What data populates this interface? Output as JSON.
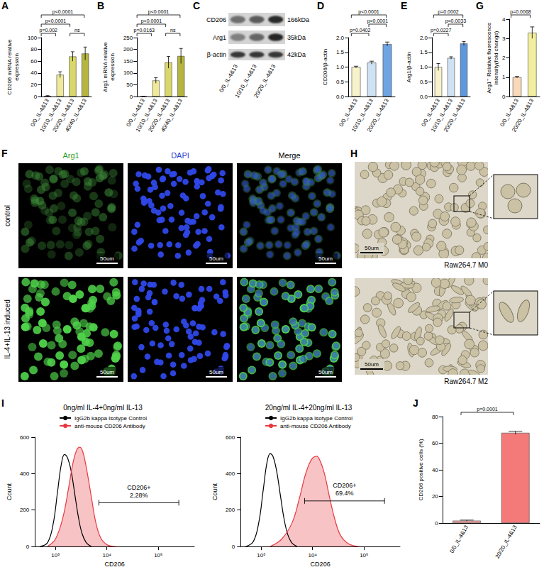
{
  "chart_data": [
    {
      "panel": "A",
      "type": "bar",
      "ylabel": "CD206 mRNA relative expression",
      "categories": [
        "0/0_IL-4&13",
        "10/10_IL-4&13",
        "20/20_IL-4&13",
        "40/40_IL-4&13"
      ],
      "values": [
        1,
        37,
        68,
        73
      ],
      "errors": [
        0.5,
        5,
        8,
        11
      ],
      "colors": [
        "#fbf7d5",
        "#efe99a",
        "#d9d76a",
        "#b5b53f"
      ],
      "ylim": [
        0,
        100
      ],
      "yticks": [
        0,
        20,
        40,
        60,
        80,
        100
      ],
      "comparisons": [
        {
          "groups": [
            0,
            1
          ],
          "label": "p=0.002"
        },
        {
          "groups": [
            2,
            3
          ],
          "label": "ns"
        },
        {
          "groups": [
            0,
            2
          ],
          "label": "p<0.0001"
        },
        {
          "groups": [
            0,
            3
          ],
          "label": "p<0.0001"
        }
      ]
    },
    {
      "panel": "B",
      "type": "bar",
      "ylabel": "Arg1 mRNA relative expression",
      "categories": [
        "0/0_IL-4&13",
        "10/10_IL-4&13",
        "20/20_IL-4&13",
        "40/40_IL-4&13"
      ],
      "values": [
        1,
        68,
        145,
        172
      ],
      "errors": [
        0.5,
        12,
        25,
        32
      ],
      "colors": [
        "#fbf7d5",
        "#efe99a",
        "#d9d76a",
        "#b5b53f"
      ],
      "ylim": [
        0,
        250
      ],
      "yticks": [
        0,
        50,
        100,
        150,
        200,
        250
      ],
      "comparisons": [
        {
          "groups": [
            0,
            1
          ],
          "label": "p=0.0163"
        },
        {
          "groups": [
            2,
            3
          ],
          "label": "ns"
        },
        {
          "groups": [
            0,
            2
          ],
          "label": "p<0.0001"
        },
        {
          "groups": [
            0,
            3
          ],
          "label": "p<0.0001"
        }
      ]
    },
    {
      "panel": "D",
      "type": "bar",
      "ylabel": "CD206/β-actin",
      "categories": [
        "0/0_IL-4&13",
        "10/10_IL-4&13",
        "20/20_IL-4&13"
      ],
      "values": [
        1.0,
        1.15,
        1.78
      ],
      "errors": [
        0.03,
        0.05,
        0.07
      ],
      "colors": [
        "#f7f2c9",
        "#cfe2f4",
        "#6ea4e2"
      ],
      "ylim": [
        0,
        2
      ],
      "yticks": [
        {
          "value": 0,
          "label": "0.0"
        },
        {
          "value": 0.5,
          "label": "0.5"
        },
        {
          "value": 1,
          "label": "1.0"
        },
        {
          "value": 1.5,
          "label": "1.5"
        },
        {
          "value": 2,
          "label": "2.0"
        }
      ],
      "comparisons": [
        {
          "groups": [
            0,
            1
          ],
          "label": "p=0.0402"
        },
        {
          "groups": [
            1,
            2
          ],
          "label": "p<0.0001"
        },
        {
          "groups": [
            0,
            2
          ],
          "label": "p<0.0001"
        }
      ]
    },
    {
      "panel": "E",
      "type": "bar",
      "ylabel": "Arg1/β-actin",
      "categories": [
        "0/0_IL-4&13",
        "10/10_IL-4&13",
        "20/20_IL-4&13"
      ],
      "values": [
        1.0,
        1.31,
        1.8
      ],
      "errors": [
        0.12,
        0.04,
        0.07
      ],
      "colors": [
        "#f7f2c9",
        "#cfe2f4",
        "#5d98dd"
      ],
      "ylim": [
        0,
        2
      ],
      "yticks": [
        {
          "value": 0,
          "label": "0.0"
        },
        {
          "value": 0.5,
          "label": "0.5"
        },
        {
          "value": 1,
          "label": "1.0"
        },
        {
          "value": 1.5,
          "label": "1.5"
        },
        {
          "value": 2,
          "label": "2.0"
        }
      ],
      "comparisons": [
        {
          "groups": [
            0,
            1
          ],
          "label": "p=0.0227"
        },
        {
          "groups": [
            1,
            2
          ],
          "label": "p=0.0033"
        },
        {
          "groups": [
            0,
            2
          ],
          "label": "p=0.0002"
        }
      ]
    },
    {
      "panel": "G",
      "type": "bar",
      "ylabel": "Arg1⁺ Relative fluorescence intensity(fold change)",
      "categories": [
        "0/0_IL-4&13",
        "20/20_IL-4&13"
      ],
      "values": [
        1.0,
        3.3
      ],
      "errors": [
        0.04,
        0.3
      ],
      "colors": [
        "#fad9b8",
        "#f1ee9f"
      ],
      "ylim": [
        0,
        4
      ],
      "yticks": [
        0,
        1,
        2,
        3,
        4
      ],
      "comparisons": [
        {
          "groups": [
            0,
            1
          ],
          "label": "p=0.0068"
        }
      ]
    },
    {
      "panel": "I",
      "type": "line",
      "title": "0ng/ml IL-4+0ng/ml IL-13",
      "xlabel": "CD206",
      "ylabel": "Count",
      "log": "x",
      "xlim": [
        400,
        500000
      ],
      "xticks": [
        {
          "value": 1000,
          "label": "10³"
        },
        {
          "value": 10000,
          "label": "10⁴"
        },
        {
          "value": 100000,
          "label": "10⁵"
        }
      ],
      "ylim": [
        0,
        600
      ],
      "yticks": [
        0,
        200,
        400,
        600
      ],
      "legend": "top",
      "series": [
        {
          "name": "IgG2b kappa Isotype Control",
          "type": "line",
          "color": "#000000",
          "x": [
            500,
            700,
            900,
            1100,
            1300,
            1500,
            1700,
            2000,
            2400,
            2800,
            3300,
            4000,
            5000
          ],
          "values": [
            0,
            20,
            120,
            300,
            450,
            505,
            490,
            420,
            280,
            160,
            70,
            20,
            0
          ]
        },
        {
          "name": "anti-mouse CD206 Antibody",
          "type": "area",
          "color": "#e8393f",
          "x": [
            700,
            1000,
            1400,
            1800,
            2200,
            2600,
            3000,
            3400,
            4000,
            5000,
            6000,
            7500,
            10000,
            15000
          ],
          "values": [
            0,
            40,
            160,
            320,
            460,
            530,
            545,
            520,
            430,
            270,
            140,
            50,
            10,
            0
          ]
        }
      ],
      "gate": {
        "x": [
          7000,
          250000
        ],
        "y": 240,
        "labels": [
          "CD206+",
          "2.28%"
        ]
      }
    },
    {
      "type": "line",
      "title": "20ng/ml IL-4+20ng/ml IL-13",
      "xlabel": "CD206",
      "ylabel": "Count",
      "log": "x",
      "xlim": [
        400,
        500000
      ],
      "xticks": [
        {
          "value": 1000,
          "label": "10³"
        },
        {
          "value": 10000,
          "label": "10⁴"
        },
        {
          "value": 100000,
          "label": "10⁵"
        }
      ],
      "ylim": [
        0,
        600
      ],
      "yticks": [
        0,
        200,
        400,
        600
      ],
      "legend": "top",
      "series": [
        {
          "name": "IgG2b kappa Isotype Control",
          "type": "line",
          "color": "#000000",
          "x": [
            500,
            700,
            900,
            1100,
            1300,
            1500,
            1700,
            2000,
            2400,
            2800,
            3300,
            4000,
            5000
          ],
          "values": [
            0,
            25,
            130,
            310,
            460,
            510,
            495,
            415,
            270,
            150,
            65,
            18,
            0
          ]
        },
        {
          "name": "anti-mouse CD206 Antibody",
          "type": "area",
          "color": "#e8393f",
          "x": [
            1500,
            2500,
            4000,
            5500,
            7000,
            8500,
            10000,
            12000,
            14000,
            17000,
            21000,
            27000,
            35000,
            50000,
            80000
          ],
          "values": [
            0,
            40,
            130,
            260,
            380,
            450,
            485,
            495,
            470,
            400,
            280,
            150,
            60,
            15,
            0
          ]
        }
      ],
      "gate": {
        "x": [
          7000,
          250000
        ],
        "y": 250,
        "labels": [
          "CD206+",
          "69.4%"
        ]
      }
    },
    {
      "panel": "J",
      "type": "bar",
      "ylabel": "CD206 positive cells (%)",
      "categories": [
        "0/0_IL-4&13",
        "20/20_IL-4&13"
      ],
      "values": [
        1.8,
        67.8
      ],
      "errors": [
        0.4,
        1.2
      ],
      "colors": [
        "#f3a4a4",
        "#f47a7a"
      ],
      "ylim": [
        0,
        80
      ],
      "yticks": [
        0,
        20,
        40,
        60,
        80
      ],
      "comparisons": [
        {
          "groups": [
            0,
            1
          ],
          "label": "p=0.0001"
        }
      ]
    }
  ],
  "blot": {
    "panel": "C",
    "bands": [
      {
        "label": "CD206",
        "size": "166kDa"
      },
      {
        "label": "Arg1",
        "size": "35kDa"
      },
      {
        "label": "β-actin",
        "size": "42kDa"
      }
    ],
    "lanes": [
      "0/0_IL-4&13",
      "10/10_IL-4&13",
      "20/20_IL-4&13"
    ]
  },
  "fluorescence": {
    "panel": "F",
    "columns": [
      "Arg1",
      "DAPI",
      "Merge"
    ],
    "rows": [
      "control",
      "IL-4+IL-13 induced"
    ],
    "scale_bar": "50um"
  },
  "brightfield": {
    "panel": "H",
    "images": [
      "Raw264.7 M0",
      "Raw264.7 M2"
    ],
    "scale_bar": "50um"
  }
}
